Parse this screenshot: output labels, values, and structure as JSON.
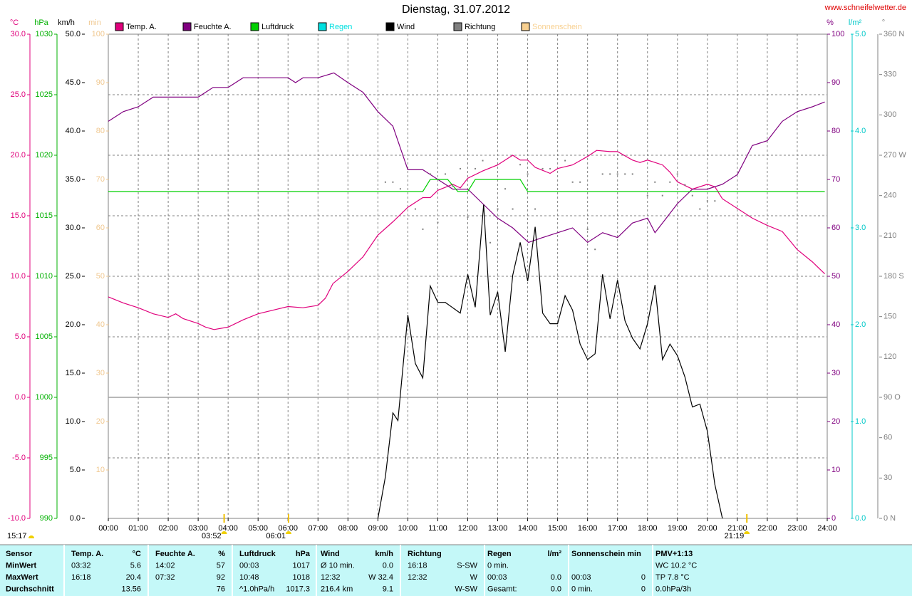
{
  "chart_data": {
    "type": "line",
    "title": "Dienstag, 31.07.2012",
    "source": "www.schneifelwetter.de",
    "xlim": [
      0,
      24
    ],
    "xticks": [
      {
        "value": 0,
        "label": "00:00"
      },
      {
        "value": 1,
        "label": "01:00"
      },
      {
        "value": 2,
        "label": "02:00"
      },
      {
        "value": 3,
        "label": "03:00"
      },
      {
        "value": 4,
        "label": "04:00"
      },
      {
        "value": 5,
        "label": "05:00"
      },
      {
        "value": 6,
        "label": "06:00"
      },
      {
        "value": 7,
        "label": "07:00"
      },
      {
        "value": 8,
        "label": "08:00"
      },
      {
        "value": 9,
        "label": "09:00"
      },
      {
        "value": 10,
        "label": "10:00"
      },
      {
        "value": 11,
        "label": "11:00"
      },
      {
        "value": 12,
        "label": "12:00"
      },
      {
        "value": 13,
        "label": "13:00"
      },
      {
        "value": 14,
        "label": "14:00"
      },
      {
        "value": 15,
        "label": "15:00"
      },
      {
        "value": 16,
        "label": "16:00"
      },
      {
        "value": 17,
        "label": "17:00"
      },
      {
        "value": 18,
        "label": "18:00"
      },
      {
        "value": 19,
        "label": "19:00"
      },
      {
        "value": 20,
        "label": "20:00"
      },
      {
        "value": 21,
        "label": "21:00"
      },
      {
        "value": 22,
        "label": "22:00"
      },
      {
        "value": 23,
        "label": "23:00"
      },
      {
        "value": 24,
        "label": "24:00"
      }
    ],
    "grid": true,
    "axes": [
      {
        "unit": "°C",
        "color": "#e0007c",
        "lim": [
          -10,
          30
        ],
        "ticks": [
          {
            "value": -10,
            "label": "-10.0"
          },
          {
            "value": -5,
            "label": "-5.0"
          },
          {
            "value": 0,
            "label": "0.0"
          },
          {
            "value": 5,
            "label": "5.0"
          },
          {
            "value": 10,
            "label": "10.0"
          },
          {
            "value": 15,
            "label": "15.0"
          },
          {
            "value": 20,
            "label": "20.0"
          },
          {
            "value": 25,
            "label": "25.0"
          },
          {
            "value": 30,
            "label": "30.0"
          }
        ]
      },
      {
        "unit": "hPa",
        "color": "#00b000",
        "lim": [
          990,
          1030
        ],
        "ticks": [
          990,
          995,
          1000,
          1005,
          1010,
          1015,
          1020,
          1025,
          1030
        ]
      },
      {
        "unit": "km/h",
        "color": "#000000",
        "lim": [
          0,
          50
        ],
        "ticks": [
          {
            "value": 0,
            "label": "0.0"
          },
          {
            "value": 5,
            "label": "5.0"
          },
          {
            "value": 10,
            "label": "10.0"
          },
          {
            "value": 15,
            "label": "15.0"
          },
          {
            "value": 20,
            "label": "20.0"
          },
          {
            "value": 25,
            "label": "25.0"
          },
          {
            "value": 30,
            "label": "30.0"
          },
          {
            "value": 35,
            "label": "35.0"
          },
          {
            "value": 40,
            "label": "40.0"
          },
          {
            "value": 45,
            "label": "45.0"
          },
          {
            "value": 50,
            "label": "50.0"
          }
        ]
      },
      {
        "unit": "min",
        "color": "#f0c890",
        "lim": [
          0,
          100
        ],
        "ticks": [
          10,
          20,
          30,
          40,
          50,
          60,
          70,
          80,
          90,
          100
        ]
      },
      {
        "unit": "%",
        "color": "#800080",
        "lim": [
          0,
          100
        ],
        "ticks": [
          0,
          10,
          20,
          30,
          40,
          50,
          60,
          70,
          80,
          90,
          100
        ]
      },
      {
        "unit": "l/m²",
        "color": "#00c8c8",
        "lim": [
          0,
          5
        ],
        "ticks": [
          {
            "value": 0,
            "label": "0.0"
          },
          {
            "value": 1,
            "label": "1.0"
          },
          {
            "value": 2,
            "label": "2.0"
          },
          {
            "value": 3,
            "label": "3.0"
          },
          {
            "value": 4,
            "label": "4.0"
          },
          {
            "value": 5,
            "label": "5.0"
          }
        ]
      },
      {
        "unit": "°",
        "color": "#808080",
        "lim": [
          0,
          360
        ],
        "ticks": [
          {
            "value": 0,
            "label": "0 N"
          },
          {
            "value": 30,
            "label": "30"
          },
          {
            "value": 60,
            "label": "60"
          },
          {
            "value": 90,
            "label": "90 O"
          },
          {
            "value": 120,
            "label": "120"
          },
          {
            "value": 150,
            "label": "150"
          },
          {
            "value": 180,
            "label": "180 S"
          },
          {
            "value": 210,
            "label": "210"
          },
          {
            "value": 240,
            "label": "240"
          },
          {
            "value": 270,
            "label": "270 W"
          },
          {
            "value": 300,
            "label": "300"
          },
          {
            "value": 330,
            "label": "330"
          },
          {
            "value": 360,
            "label": "360 N"
          }
        ]
      }
    ],
    "series": [
      {
        "name": "Temp. A.",
        "color": "#e0007c",
        "axis": 0,
        "x": [
          0,
          0.5,
          1,
          1.5,
          2,
          2.25,
          2.5,
          3,
          3.25,
          3.53,
          4,
          4.5,
          5,
          5.5,
          6,
          6.5,
          7,
          7.25,
          7.5,
          8,
          8.5,
          9,
          9.5,
          10,
          10.5,
          10.75,
          11,
          11.5,
          11.75,
          12,
          12.5,
          13,
          13.5,
          13.75,
          14,
          14.25,
          14.75,
          15,
          15.5,
          16,
          16.3,
          16.75,
          17,
          17.5,
          17.75,
          18,
          18.5,
          18.75,
          19,
          19.5,
          20,
          20.25,
          20.5,
          21,
          21.5,
          22,
          22.5,
          23,
          23.5,
          23.92
        ],
        "values": [
          8.3,
          7.8,
          7.4,
          6.9,
          6.6,
          6.9,
          6.5,
          6.1,
          5.8,
          5.6,
          5.8,
          6.4,
          6.9,
          7.2,
          7.5,
          7.4,
          7.6,
          8.2,
          9.4,
          10.4,
          11.6,
          13.4,
          14.5,
          15.7,
          16.5,
          16.5,
          17.1,
          17.6,
          17.3,
          18.1,
          18.7,
          19.2,
          20.0,
          19.6,
          19.6,
          19.0,
          18.5,
          18.9,
          19.2,
          19.9,
          20.4,
          20.3,
          20.3,
          19.6,
          19.4,
          19.6,
          19.2,
          18.6,
          17.8,
          17.2,
          17.6,
          17.4,
          16.4,
          15.6,
          14.8,
          14.2,
          13.7,
          12.2,
          11.2,
          10.2
        ]
      },
      {
        "name": "Feuchte A.",
        "color": "#800080",
        "axis": 4,
        "x": [
          0,
          0.5,
          1,
          1.5,
          2,
          3,
          3.5,
          4,
          4.5,
          5,
          6,
          6.25,
          6.5,
          7,
          7.53,
          8,
          8.5,
          9,
          9.5,
          10,
          10.5,
          11,
          11.5,
          12,
          12.5,
          13,
          13.5,
          14.03,
          14.5,
          15,
          15.5,
          16,
          16.5,
          17,
          17.5,
          18,
          18.25,
          18.5,
          19,
          19.5,
          20,
          20.5,
          21,
          21.5,
          22,
          22.5,
          23,
          23.5,
          23.92
        ],
        "values": [
          82,
          84,
          85,
          87,
          87,
          87,
          89,
          89,
          91,
          91,
          91,
          90,
          91,
          91,
          92,
          90,
          88,
          84,
          81,
          72,
          72,
          70,
          68,
          68,
          65,
          62,
          60,
          57,
          58,
          59,
          60,
          57,
          59,
          58,
          61,
          62,
          59,
          61,
          65,
          68,
          68,
          69,
          71,
          77,
          78,
          82,
          84,
          85,
          86
        ]
      },
      {
        "name": "Luftdruck",
        "color": "#00d000",
        "axis": 1,
        "x": [
          0,
          10.5,
          10.75,
          11.33,
          11.67,
          12,
          12.25,
          13.75,
          14,
          23.92
        ],
        "values": [
          1017,
          1017,
          1018,
          1018,
          1017,
          1017,
          1018,
          1018,
          1017,
          1017
        ]
      },
      {
        "name": "Regen",
        "color": "#00e0e0",
        "axis": 5
      },
      {
        "name": "Wind",
        "color": "#000000",
        "axis": 2,
        "x": [
          9,
          9.25,
          9.5,
          9.67,
          10,
          10.25,
          10.5,
          10.75,
          11,
          11.25,
          11.75,
          12,
          12.25,
          12.53,
          12.75,
          13,
          13.25,
          13.5,
          13.75,
          14,
          14.25,
          14.5,
          14.75,
          15,
          15.25,
          15.5,
          15.75,
          16,
          16.25,
          16.5,
          16.75,
          17,
          17.25,
          17.5,
          17.75,
          18,
          18.25,
          18.5,
          18.75,
          19,
          19.25,
          19.5,
          19.75,
          20,
          20.25,
          20.5
        ],
        "values": [
          0,
          4.3,
          10.9,
          10.1,
          21.0,
          16.0,
          14.5,
          24.0,
          22.3,
          22.3,
          21.2,
          25.2,
          21.8,
          32.4,
          21.0,
          23.4,
          17.2,
          25.1,
          28.5,
          24.5,
          30.1,
          21.2,
          20.1,
          20.1,
          23.0,
          21.5,
          18.0,
          16.4,
          17.0,
          25.2,
          20.6,
          24.6,
          20.4,
          18.6,
          17.5,
          20.1,
          24.1,
          16.4,
          18.0,
          16.8,
          14.6,
          11.5,
          11.8,
          9.0,
          3.5,
          0
        ]
      },
      {
        "name": "Richtung",
        "color": "#808080",
        "axis": 6,
        "style": "dots",
        "x": [
          9.25,
          9.5,
          9.75,
          10.25,
          10.5,
          10.75,
          11,
          11.25,
          11.5,
          11.75,
          12,
          12.25,
          12.5,
          12.75,
          13,
          13.25,
          13.5,
          13.75,
          14,
          14.25,
          14.5,
          14.75,
          15.25,
          15.5,
          15.75,
          16,
          16.25,
          16.5,
          16.75,
          17,
          17.25,
          17.5,
          18,
          18.25,
          18.5,
          18.75,
          19,
          19.25,
          19.5,
          19.75,
          20,
          20.25
        ],
        "values": [
          250,
          250,
          245,
          230,
          215,
          256,
          220,
          256,
          247,
          260,
          224,
          260,
          266,
          205,
          230,
          245,
          230,
          263,
          256,
          230,
          260,
          260,
          266,
          250,
          250,
          215,
          200,
          256,
          256,
          256,
          256,
          256,
          240,
          250,
          240,
          250,
          256,
          248,
          240,
          230,
          236,
          236
        ]
      },
      {
        "name": "Sonnenschein",
        "color": "#f8d090",
        "axis": 3
      }
    ],
    "left_label": "15:17",
    "sun_events": [
      {
        "time": 3.867,
        "label": "03:52"
      },
      {
        "time": 6.017,
        "label": "06:01"
      },
      {
        "time": 21.317,
        "label": "21:19"
      }
    ]
  },
  "table": {
    "rows": [
      [
        "Sensor",
        "Temp. A.",
        "°C",
        "Feuchte A.",
        "%",
        "Luftdruck",
        "hPa",
        "Wind",
        "km/h",
        "Richtung",
        null,
        "Regen",
        "l/m²",
        "Sonnenschein min",
        null,
        "PMV+1:13"
      ],
      [
        "MinWert",
        "03:32",
        "5.6",
        "14:02",
        "57",
        "00:03",
        "1017",
        "Ø 10 min.",
        "0.0",
        "16:18",
        "S-SW",
        "0 min.",
        null,
        null,
        null,
        "WC 10.2 °C"
      ],
      [
        "MaxWert",
        "16:18",
        "20.4",
        "07:32",
        "92",
        "10:48",
        "1018",
        "12:32",
        "W 32.4",
        "12:32",
        "W",
        "00:03",
        "0.0",
        "00:03",
        "0",
        "TP 7.8 °C"
      ],
      [
        "Durchschnitt",
        null,
        "13.56",
        null,
        "76",
        "^1.0hPa/h",
        "1017.3",
        "216.4 km",
        "9.1",
        null,
        "W-SW",
        "Gesamt:",
        "0.0",
        "0 min.",
        "0",
        "0.0hPa/3h"
      ]
    ]
  }
}
